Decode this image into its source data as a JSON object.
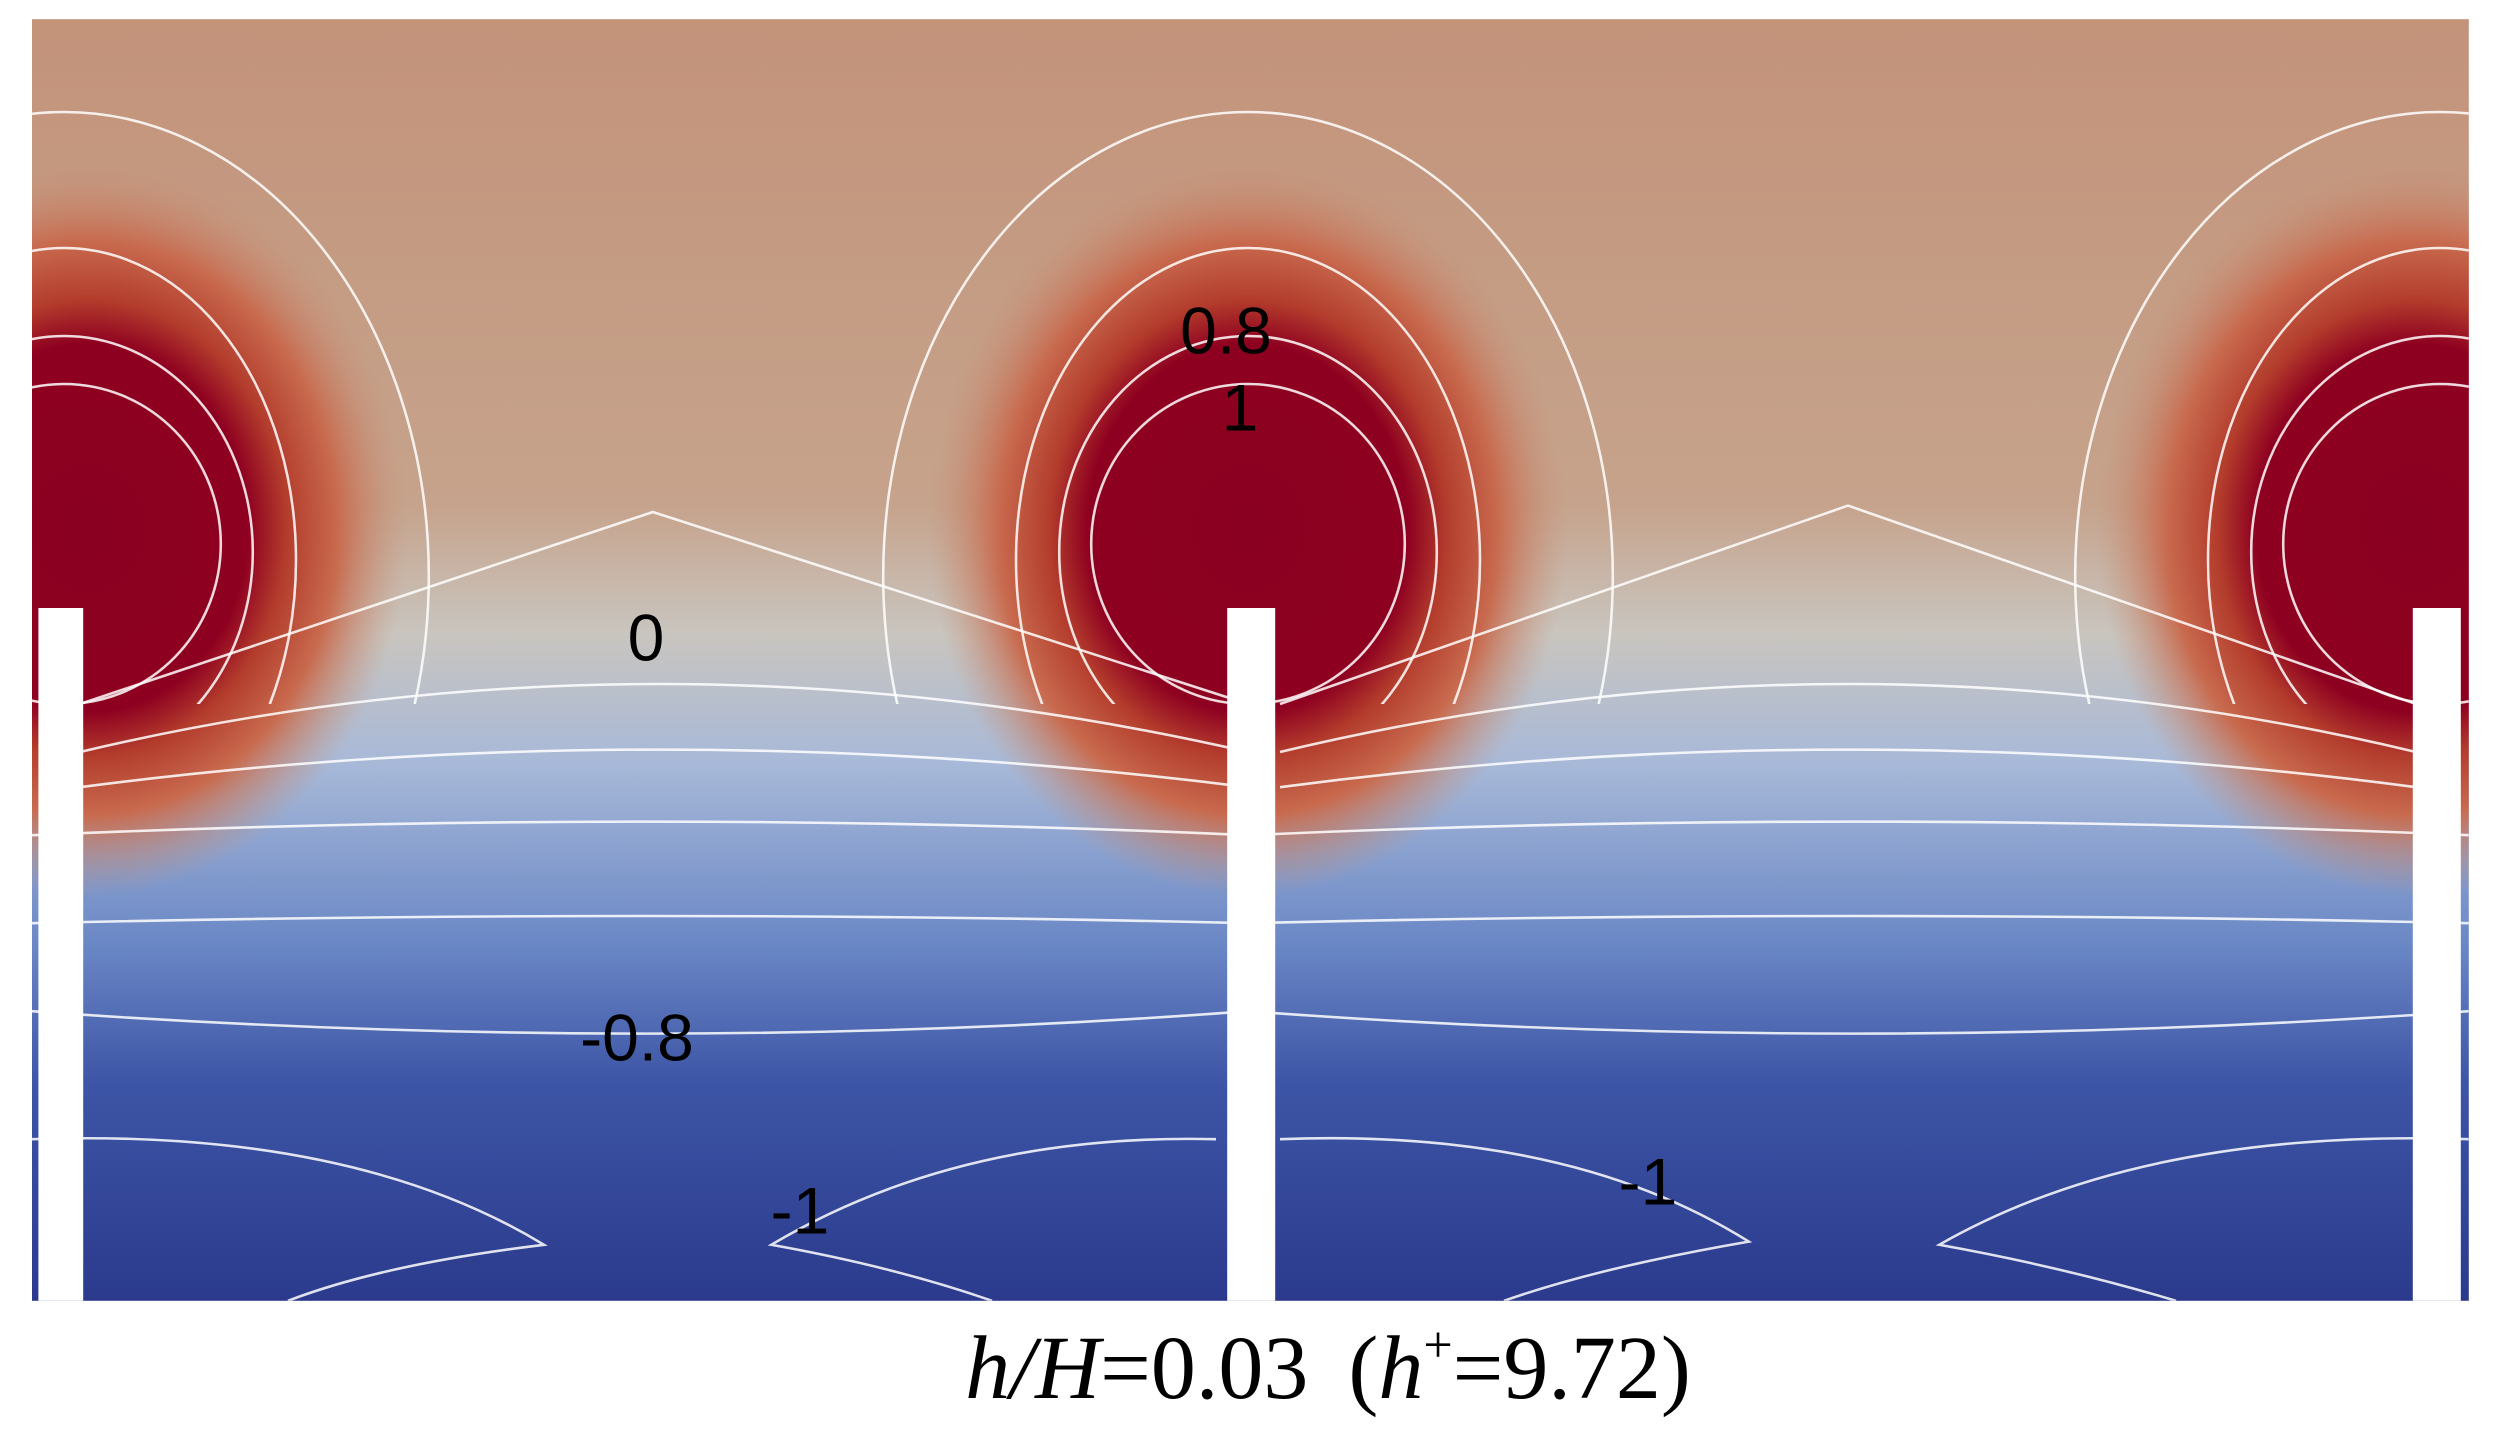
{
  "contour_labels": [
    "0.8",
    "1",
    "0",
    "-0.8",
    "-1",
    "-1"
  ],
  "caption": {
    "var1": "h/H",
    "eq1": "=0.03",
    "open": "(",
    "var2": "h",
    "sup": "+",
    "eq2": "=9.72",
    "close": ")"
  }
}
